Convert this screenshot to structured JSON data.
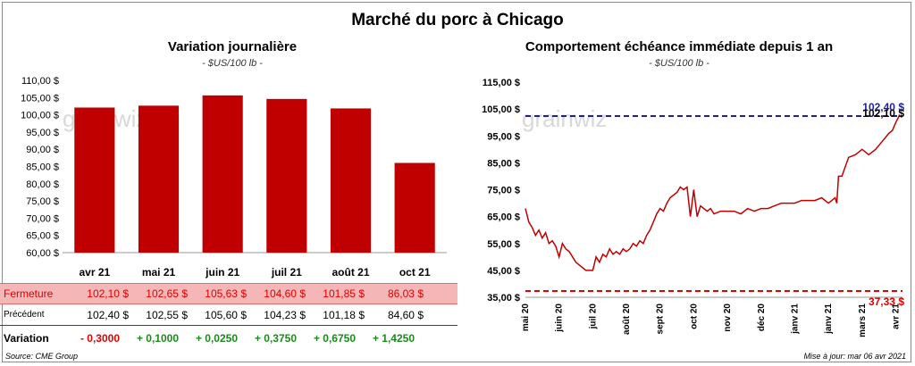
{
  "title": "Marché du porc à Chicago",
  "left_panel": {
    "title": "Variation  journalière",
    "subtitle": "- $US/100 lb -",
    "table": {
      "close_label": "Fermeture",
      "close_values": [
        "102,10  $",
        "102,65  $",
        "105,63  $",
        "104,60  $",
        "101,85  $",
        "86,03  $"
      ],
      "prev_label": "Précédent",
      "prev_values": [
        "102,40  $",
        "102,55  $",
        "105,60  $",
        "104,23  $",
        "101,18  $",
        "84,60  $"
      ],
      "var_label": "Variation",
      "var_values": [
        "- 0,3000",
        "+ 0,1000",
        "+ 0,0250",
        "+ 0,3750",
        "+ 0,6750",
        "+ 1,4250"
      ]
    }
  },
  "right_panel": {
    "title": "Comportement  échéance immédiate depuis 1 an",
    "subtitle": "- $US/100 lb -"
  },
  "watermark": "grainwiz",
  "footer": {
    "source": "Source: CME Group",
    "updated": "Mise à jour: mar 06 avr 2021"
  },
  "colors": {
    "bar": "#c00000",
    "high_line": "#1f1f9e",
    "low_line": "#e00000",
    "series": "#c00000"
  },
  "chart_data": [
    {
      "type": "bar",
      "title": "Variation  journalière",
      "categories": [
        "avr 21",
        "mai 21",
        "juin 21",
        "juil 21",
        "août 21",
        "oct 21"
      ],
      "values": [
        102.1,
        102.65,
        105.63,
        104.6,
        101.85,
        86.03
      ],
      "ylim": [
        60,
        110
      ],
      "yticks": [
        60,
        65,
        70,
        75,
        80,
        85,
        90,
        95,
        100,
        105,
        110
      ],
      "ytick_labels": [
        "60,00 $",
        "65,00 $",
        "70,00 $",
        "75,00 $",
        "80,00 $",
        "85,00 $",
        "90,00 $",
        "95,00 $",
        "100,00 $",
        "105,00 $",
        "110,00 $"
      ]
    },
    {
      "type": "line",
      "title": "Comportement  échéance immédiate depuis 1 an",
      "ylim": [
        35,
        115
      ],
      "yticks": [
        35,
        45,
        55,
        65,
        75,
        85,
        95,
        105,
        115
      ],
      "ytick_labels": [
        "35,00 $",
        "45,00 $",
        "55,00 $",
        "65,00 $",
        "75,00 $",
        "85,00 $",
        "95,00 $",
        "105,00 $",
        "115,00 $"
      ],
      "xlim": [
        0,
        11.2
      ],
      "xticks": [
        0,
        1,
        2,
        3,
        4,
        5,
        6,
        7,
        8,
        9,
        10,
        11
      ],
      "xtick_labels": [
        "mai 20",
        "juin 20",
        "juil 20",
        "août 20",
        "sept 20",
        "oct 20",
        "nov 20",
        "déc 20",
        "janv 21",
        "janv 21",
        "mars 21",
        "avr 21"
      ],
      "series": [
        {
          "name": "Échéance immédiate",
          "x": [
            0,
            0.1,
            0.2,
            0.3,
            0.4,
            0.5,
            0.6,
            0.7,
            0.8,
            0.9,
            1.0,
            1.1,
            1.2,
            1.3,
            1.4,
            1.5,
            1.6,
            1.7,
            1.8,
            1.9,
            2.0,
            2.1,
            2.2,
            2.3,
            2.4,
            2.5,
            2.6,
            2.7,
            2.8,
            2.9,
            3.0,
            3.1,
            3.2,
            3.3,
            3.4,
            3.5,
            3.6,
            3.7,
            3.8,
            3.9,
            4.0,
            4.1,
            4.2,
            4.3,
            4.4,
            4.5,
            4.6,
            4.7,
            4.8,
            4.9,
            5.0,
            5.05,
            5.1,
            5.2,
            5.3,
            5.4,
            5.5,
            5.6,
            5.8,
            6.0,
            6.2,
            6.4,
            6.6,
            6.8,
            7.0,
            7.2,
            7.4,
            7.6,
            7.8,
            8.0,
            8.2,
            8.4,
            8.6,
            8.8,
            9.0,
            9.1,
            9.2,
            9.25,
            9.3,
            9.4,
            9.6,
            9.8,
            10.0,
            10.2,
            10.4,
            10.6,
            10.8,
            10.9,
            11.0,
            11.1,
            11.2
          ],
          "y": [
            68,
            63,
            61,
            58,
            60,
            57,
            59,
            55,
            56,
            54,
            50,
            55,
            53,
            52,
            50,
            48,
            47,
            46,
            45,
            45,
            45,
            50,
            48,
            51,
            50,
            53,
            51,
            52,
            51,
            53,
            52,
            53,
            55,
            54,
            56,
            55,
            58,
            60,
            63,
            66,
            68,
            67,
            70,
            72,
            73,
            74,
            76,
            75,
            76,
            65,
            75,
            70,
            65,
            69,
            68,
            67,
            68,
            66,
            67,
            67,
            67,
            66,
            68,
            67,
            68,
            68,
            69,
            70,
            70,
            70,
            71,
            71,
            71,
            72,
            70,
            71,
            72,
            70,
            80,
            80,
            87,
            88,
            90,
            88,
            90,
            93,
            96,
            97,
            100,
            102.4,
            102.1
          ]
        }
      ],
      "reference_lines": [
        {
          "label": "102,40 $",
          "value": 102.4,
          "color": "#1f1f9e"
        },
        {
          "label": "37,33 $",
          "value": 37.33,
          "color": "#e00000"
        }
      ],
      "last_label": "102,10 $"
    }
  ]
}
